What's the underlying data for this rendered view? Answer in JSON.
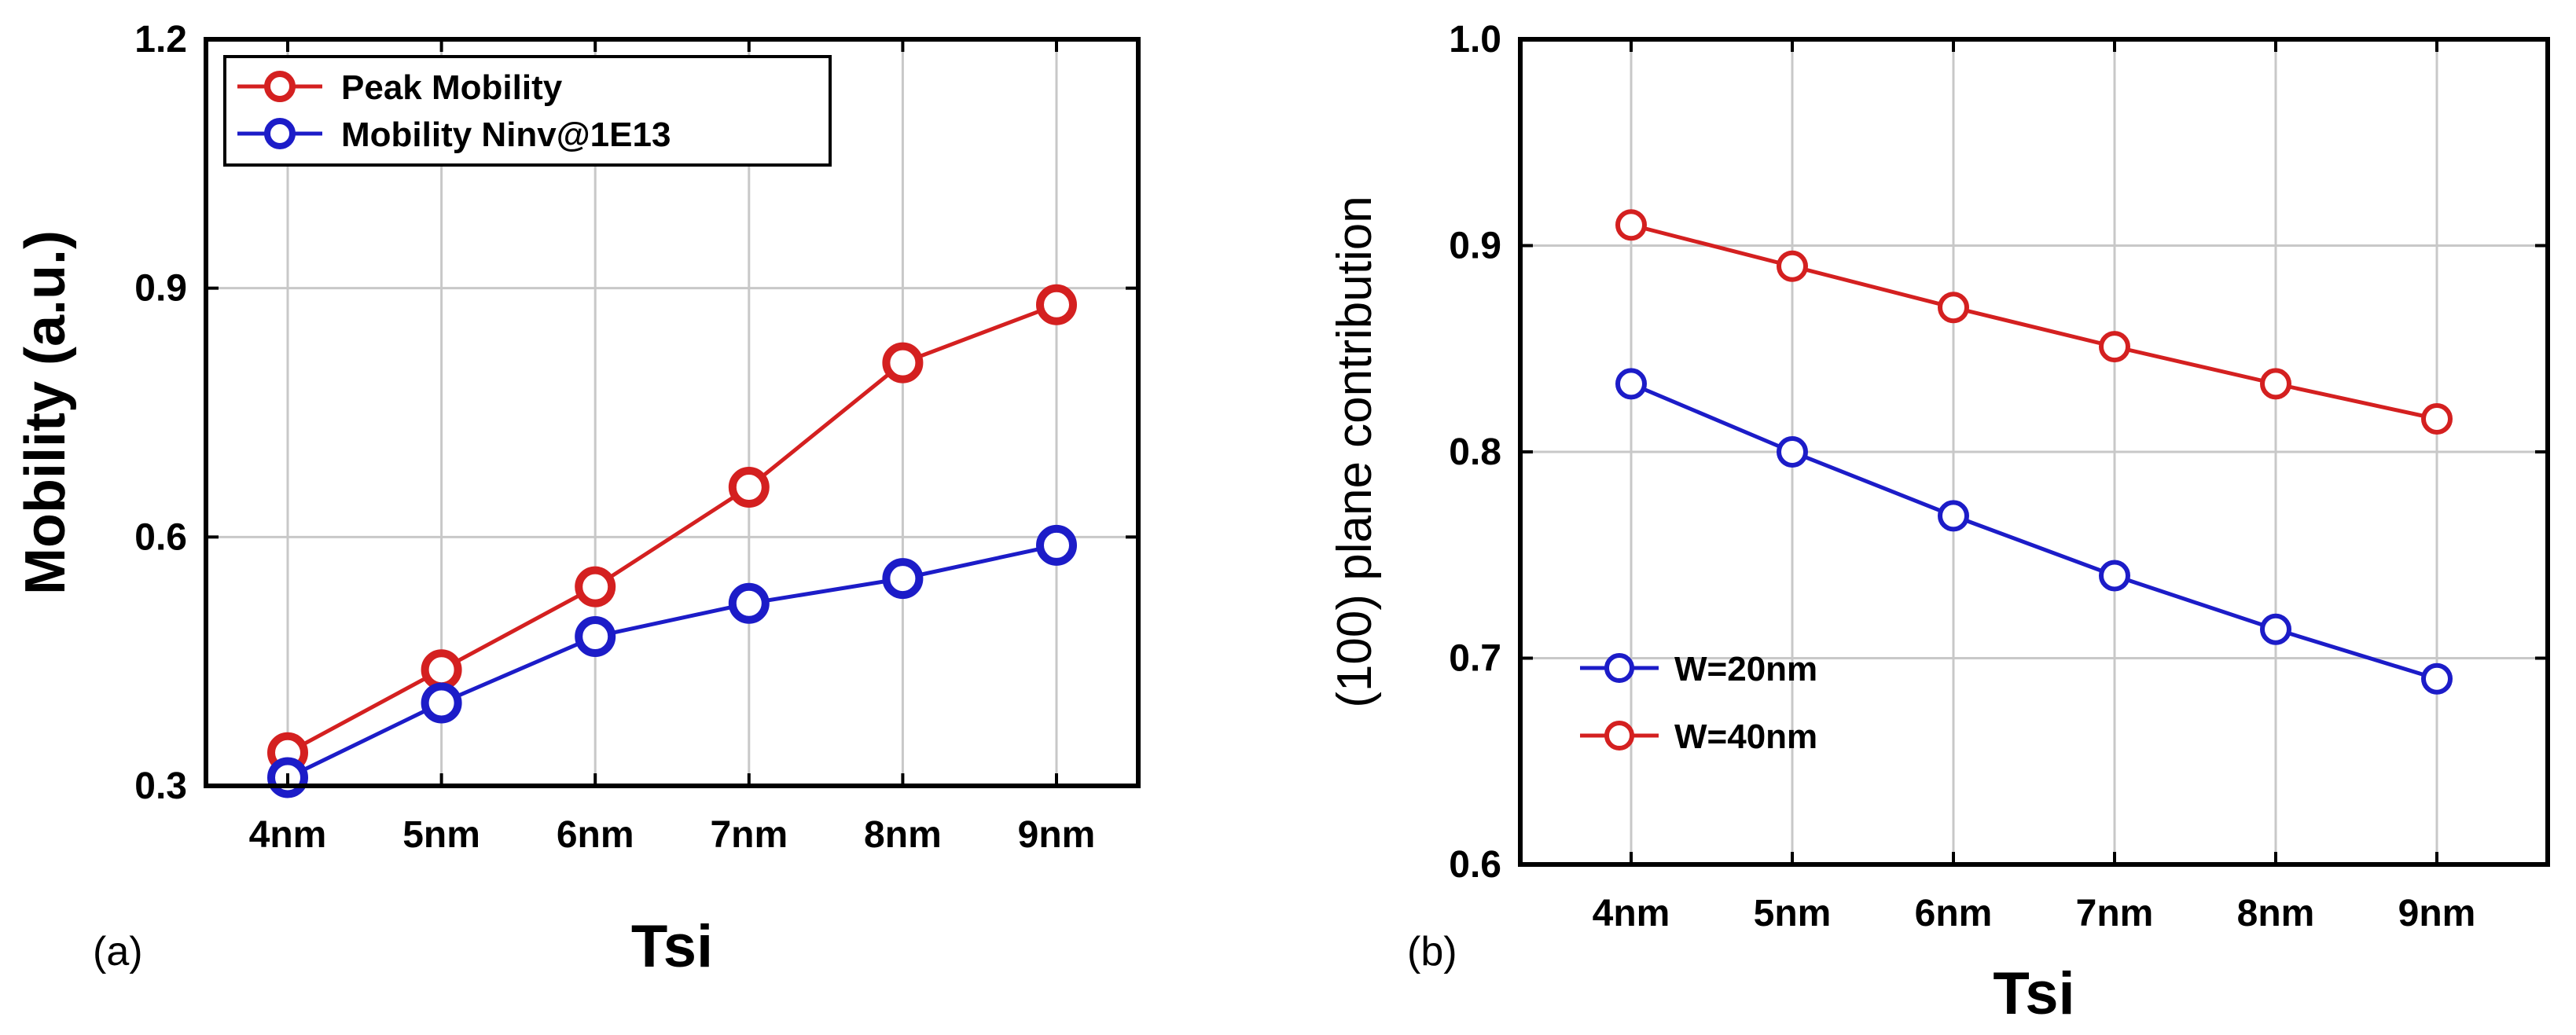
{
  "chart_data": [
    {
      "panel": "(a)",
      "type": "line",
      "title": "",
      "xlabel": "Tsi",
      "ylabel": "Mobility (a.u.)",
      "categories": [
        "4nm",
        "5nm",
        "6nm",
        "7nm",
        "8nm",
        "9nm"
      ],
      "ylim": [
        0.3,
        1.2
      ],
      "yticks": [
        0.3,
        0.6,
        0.9,
        1.2
      ],
      "ytick_labels": [
        "0.3",
        "0.6",
        "0.9",
        "1.2"
      ],
      "grid": true,
      "legend_position": "top-left",
      "series": [
        {
          "name": "Peak Mobility",
          "color": "#d42020",
          "values": [
            0.34,
            0.44,
            0.54,
            0.66,
            0.81,
            0.88
          ]
        },
        {
          "name": "Mobility Ninv@1E13",
          "color": "#1c1cc8",
          "values": [
            0.31,
            0.4,
            0.48,
            0.52,
            0.55,
            0.59
          ]
        }
      ]
    },
    {
      "panel": "(b)",
      "type": "line",
      "title": "",
      "xlabel": "Tsi",
      "ylabel": "(100) plane contribution",
      "categories": [
        "4nm",
        "5nm",
        "6nm",
        "7nm",
        "8nm",
        "9nm"
      ],
      "ylim": [
        0.6,
        1.0
      ],
      "yticks": [
        0.6,
        0.7,
        0.8,
        0.9,
        1.0
      ],
      "ytick_labels": [
        "0.6",
        "0.7",
        "0.8",
        "0.9",
        "1.0"
      ],
      "grid": true,
      "legend_position": "bottom-left",
      "series": [
        {
          "name": "W=20nm",
          "color": "#1c1cc8",
          "values": [
            0.833,
            0.8,
            0.769,
            0.74,
            0.714,
            0.69
          ]
        },
        {
          "name": "W=40nm",
          "color": "#d42020",
          "values": [
            0.91,
            0.89,
            0.87,
            0.851,
            0.833,
            0.816
          ]
        }
      ]
    }
  ]
}
